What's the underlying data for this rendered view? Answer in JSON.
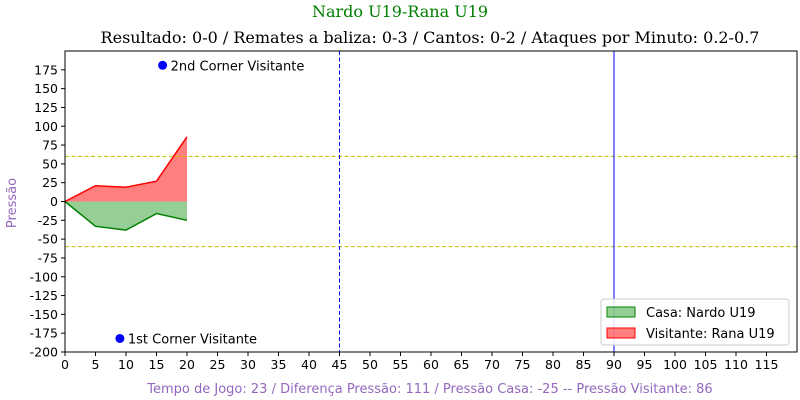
{
  "chart_data": {
    "type": "area",
    "title": "Nardo U19-Rana U19",
    "subtitle": "Resultado: 0-0 / Remates a baliza: 0-3 / Cantos: 0-2 / Ataques por Minuto: 0.2-0.7",
    "xlabel": "Tempo de Jogo: 23 / Diferença Pressão: 111 / Pressão Casa: -25 -- Pressão Visitante: 86",
    "ylabel": "Pressão",
    "xlim": [
      0,
      120
    ],
    "ylim": [
      -200,
      200
    ],
    "x_ticks": [
      0,
      5,
      10,
      15,
      20,
      25,
      30,
      35,
      40,
      45,
      50,
      55,
      60,
      65,
      70,
      75,
      80,
      85,
      90,
      95,
      100,
      105,
      110,
      115
    ],
    "y_ticks": [
      -200,
      -175,
      -150,
      -125,
      -100,
      -75,
      -50,
      -25,
      0,
      25,
      50,
      75,
      100,
      125,
      150,
      175
    ],
    "series": [
      {
        "name": "Casa: Nardo U19",
        "color": "#008000",
        "fill": "#2ca02c",
        "x": [
          0,
          5,
          10,
          15,
          20
        ],
        "y": [
          0,
          -33,
          -38,
          -16,
          -25
        ]
      },
      {
        "name": "Visitante: Rana U19",
        "color": "#ff0000",
        "fill": "#ff0000",
        "x": [
          0,
          5,
          10,
          15,
          20
        ],
        "y": [
          0,
          21,
          19,
          27,
          86
        ]
      }
    ],
    "threshold_lines": [
      {
        "y": 60,
        "color": "#bfbf00",
        "style": "dashed"
      },
      {
        "y": -60,
        "color": "#bfbf00",
        "style": "dashed"
      }
    ],
    "vertical_lines": [
      {
        "x": 45,
        "color": "#0000ff",
        "style": "dashed"
      },
      {
        "x": 90,
        "color": "#0000ff",
        "style": "solid"
      }
    ],
    "events": [
      {
        "label": "2nd Corner Visitante",
        "x": 16,
        "y": 181,
        "color": "#0000ff"
      },
      {
        "label": "1st Corner Visitante",
        "x": 9,
        "y": -182,
        "color": "#0000ff"
      }
    ],
    "legend": "lower-right",
    "grid": false
  }
}
